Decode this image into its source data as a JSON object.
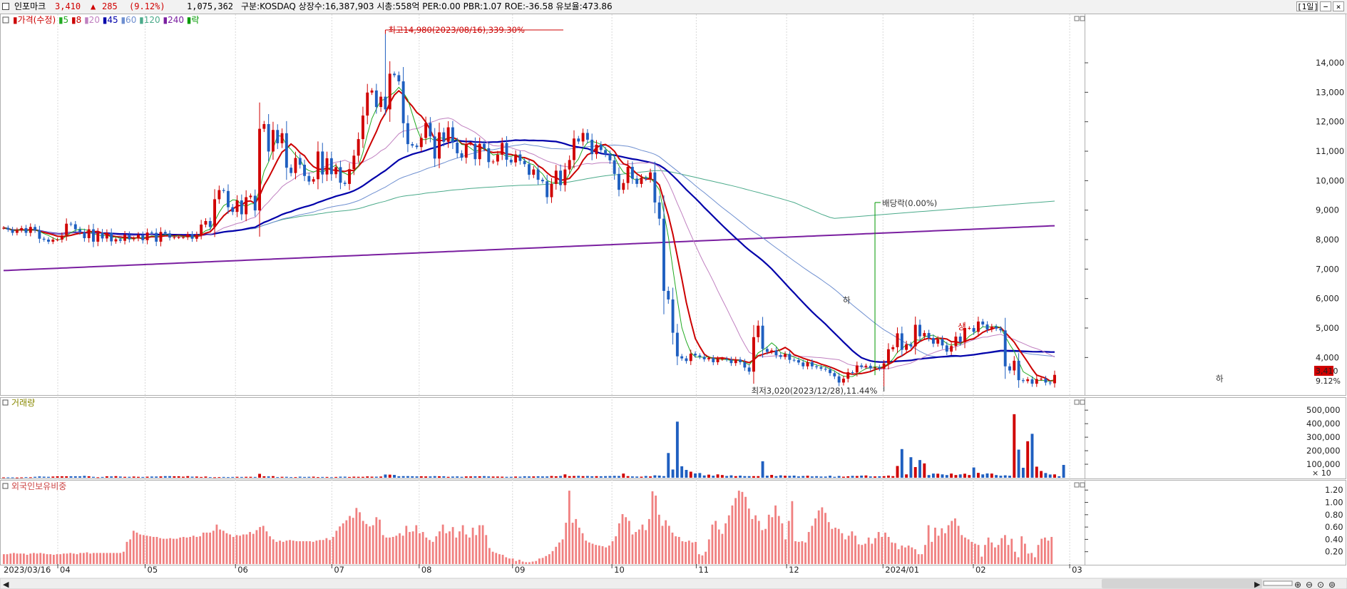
{
  "header": {
    "stock_name": "인포마크",
    "price": "3,410",
    "arrow": "▲",
    "change": "285",
    "change_pct": "(9.12%)",
    "volume": "1,075,362",
    "info": "구분:KOSDAQ 상장수:16,387,903 시총:558억 PER:0.00 PBR:1.07 ROE:-36.58 유보율:473.86",
    "period_button": "[1일]",
    "up_color": "#d00000",
    "down_color": "#1f5fc0"
  },
  "chart_data": {
    "type": "candlestick",
    "price_panel": {
      "legend": [
        {
          "label": "가격(수정)",
          "color": "#cc0000"
        },
        {
          "label": "5",
          "color": "#22aa22"
        },
        {
          "label": "8",
          "color": "#cc0000"
        },
        {
          "label": "20",
          "color": "#c080c0"
        },
        {
          "label": "45",
          "color": "#0000aa"
        },
        {
          "label": "60",
          "color": "#6e8fd0"
        },
        {
          "label": "120",
          "color": "#4aaa8a"
        },
        {
          "label": "240",
          "color": "#7a1fa0"
        },
        {
          "label": "락",
          "color": "#009900"
        }
      ],
      "y_ticks": [
        14000,
        13000,
        12000,
        11000,
        10000,
        9000,
        8000,
        7000,
        6000,
        5000,
        4000
      ],
      "y_tick_labels": [
        "14,000",
        "13,000",
        "12,000",
        "11,000",
        "10,000",
        "9,000",
        "8,000",
        "7,000",
        "6,000",
        "5,000",
        "4,000"
      ],
      "ylim": [
        2750,
        15550
      ],
      "current_price_label": "3,410",
      "current_pct_label": "9.12%",
      "high_annotation": "최고14,980(2023/08/16),339.30%",
      "low_annotation": "최저3,020(2023/12/28),11.44%",
      "dividend_annotation": "배당락(0.00%)",
      "markers": [
        "하",
        "상",
        "하"
      ],
      "closes": [
        8400,
        8340,
        8230,
        8320,
        8390,
        8230,
        8430,
        8320,
        8030,
        8000,
        7930,
        8000,
        8000,
        8140,
        8540,
        8520,
        8350,
        8250,
        8050,
        8350,
        7930,
        8240,
        8040,
        8230,
        7940,
        8010,
        7960,
        8170,
        8010,
        8040,
        8160,
        7980,
        8240,
        8230,
        7930,
        8260,
        8210,
        8070,
        8080,
        8080,
        8080,
        8180,
        8030,
        8170,
        8510,
        8630,
        8430,
        9370,
        9680,
        9650,
        9100,
        8940,
        9330,
        8860,
        9440,
        9490,
        8990,
        11760,
        11920,
        10990,
        11720,
        11270,
        11610,
        10440,
        10260,
        10770,
        10540,
        10160,
        9970,
        10050,
        10990,
        10210,
        10760,
        10220,
        10460,
        9930,
        9890,
        10390,
        10850,
        11410,
        12210,
        12990,
        13060,
        12500,
        12850,
        12420,
        13630,
        13580,
        13370,
        11950,
        11240,
        11190,
        11140,
        11450,
        11960,
        11500,
        10750,
        11640,
        11320,
        11810,
        11290,
        10930,
        10780,
        11250,
        11250,
        10730,
        11250,
        11100,
        10630,
        10650,
        10880,
        11280,
        10710,
        10620,
        10890,
        10670,
        10560,
        10200,
        10380,
        10030,
        9980,
        9440,
        9890,
        10340,
        9850,
        10380,
        10700,
        11430,
        11330,
        11620,
        11390,
        10900,
        11220,
        11040,
        10900,
        10690,
        10230,
        9690,
        9920,
        10470,
        10070,
        9890,
        10100,
        10060,
        10280,
        9260,
        8710,
        6260,
        5970,
        4840,
        4040,
        3970,
        3880,
        4130,
        4070,
        4020,
        3940,
        3980,
        3840,
        3950,
        3960,
        3930,
        3810,
        3930,
        3840,
        3660,
        3520,
        4690,
        5080,
        4290,
        4190,
        4240,
        4080,
        4020,
        4120,
        3920,
        3910,
        3830,
        3700,
        3840,
        3700,
        3670,
        3620,
        3590,
        3470,
        3360,
        3150,
        3280,
        3500,
        3490,
        3730,
        3680,
        3720,
        3630,
        3680,
        3620,
        3800,
        4280,
        4350,
        4820,
        4260,
        4450,
        4380,
        5110,
        4720,
        4830,
        4660,
        4470,
        4620,
        4410,
        4200,
        4390,
        4710,
        4520,
        5000,
        5000,
        4870,
        5220,
        5120,
        4950,
        5050,
        4980,
        4920,
        3700,
        3560,
        3890,
        3230,
        3200,
        3260,
        3110,
        3270,
        3280,
        3150,
        3125,
        3410
      ]
    },
    "volume_panel": {
      "title": "거래량",
      "y_ticks": [
        500000,
        400000,
        300000,
        200000,
        100000
      ],
      "y_tick_labels": [
        "500,000",
        "400,000",
        "300,000",
        "200,000",
        "100,000"
      ],
      "unit_label": "× 10",
      "ylim": [
        0,
        580000
      ],
      "values": [
        3000,
        3000,
        3000,
        2000,
        3000,
        5000,
        4000,
        7000,
        10000,
        8000,
        7000,
        9000,
        11000,
        11000,
        11000,
        11000,
        11000,
        11000,
        14000,
        11000,
        7000,
        4000,
        6000,
        11000,
        10000,
        12000,
        9000,
        7000,
        7000,
        9000,
        7000,
        6000,
        8000,
        9000,
        9000,
        10000,
        12000,
        12000,
        11000,
        11000,
        8000,
        12000,
        8000,
        9000,
        6000,
        9000,
        5000,
        4000,
        5000,
        6000,
        5000,
        6000,
        7000,
        6000,
        7000,
        7000,
        6000,
        29000,
        11000,
        10000,
        12000,
        5000,
        7000,
        7000,
        5000,
        5000,
        8000,
        6000,
        7000,
        8000,
        5000,
        6000,
        6000,
        4000,
        6000,
        8000,
        8000,
        6000,
        8000,
        7000,
        7000,
        10000,
        8000,
        8000,
        9000,
        24000,
        23000,
        21000,
        11000,
        12000,
        12000,
        11000,
        10000,
        11000,
        10000,
        10000,
        12000,
        11000,
        11000,
        7000,
        9000,
        10000,
        7000,
        10000,
        10000,
        11000,
        11000,
        12000,
        10000,
        9000,
        9000,
        8000,
        7000,
        7000,
        9000,
        8000,
        11000,
        10000,
        10000,
        11000,
        10000,
        10000,
        13000,
        11000,
        13000,
        25000,
        12000,
        13000,
        14000,
        12000,
        13000,
        11000,
        12000,
        11000,
        12000,
        13000,
        14000,
        13000,
        31000,
        12000,
        10000,
        9000,
        8000,
        13000,
        10000,
        18000,
        16000,
        12000,
        183000,
        61000,
        415000,
        85000,
        58000,
        45000,
        32000,
        35000,
        17000,
        23000,
        15000,
        25000,
        20000,
        13000,
        18000,
        12000,
        16000,
        12000,
        12000,
        12000,
        12000,
        122000,
        15000,
        21000,
        12000,
        18000,
        15000,
        14000,
        16000,
        10000,
        13000,
        15000,
        10000,
        12000,
        9000,
        9000,
        15000,
        7000,
        13000,
        8000,
        11000,
        14000,
        13000,
        16000,
        17000,
        10000,
        10000,
        11000,
        12000,
        16000,
        12000,
        87000,
        212000,
        25000,
        152000,
        79000,
        131000,
        106000,
        20000,
        31000,
        30000,
        25000,
        20000,
        31000,
        20000,
        25000,
        30000,
        20000,
        76000,
        36000,
        25000,
        32000,
        31000,
        20000,
        15000,
        18000,
        15000,
        470000,
        208000,
        74000,
        270000,
        325000,
        82000,
        50000,
        35000,
        24000,
        25000,
        11000,
        95000
      ]
    },
    "foreign_panel": {
      "title": "외국인보유비중",
      "y_ticks": [
        1.2,
        1.0,
        0.8,
        0.6,
        0.4,
        0.2
      ],
      "y_tick_labels": [
        "1.20",
        "1.00",
        "0.80",
        "0.60",
        "0.40",
        "0.20"
      ],
      "ylim": [
        0,
        1.33
      ],
      "values": [
        0.16,
        0.16,
        0.17,
        0.18,
        0.17,
        0.17,
        0.17,
        0.15,
        0.17,
        0.18,
        0.17,
        0.18,
        0.17,
        0.16,
        0.16,
        0.15,
        0.16,
        0.16,
        0.17,
        0.17,
        0.18,
        0.17,
        0.16,
        0.18,
        0.18,
        0.19,
        0.17,
        0.18,
        0.18,
        0.18,
        0.18,
        0.18,
        0.18,
        0.18,
        0.18,
        0.18,
        0.2,
        0.36,
        0.4,
        0.54,
        0.51,
        0.48,
        0.47,
        0.46,
        0.45,
        0.44,
        0.44,
        0.42,
        0.41,
        0.41,
        0.42,
        0.41,
        0.41,
        0.43,
        0.44,
        0.43,
        0.44,
        0.46,
        0.44,
        0.45,
        0.51,
        0.51,
        0.51,
        0.54,
        0.64,
        0.56,
        0.54,
        0.5,
        0.48,
        0.44,
        0.47,
        0.46,
        0.48,
        0.48,
        0.52,
        0.49,
        0.55,
        0.6,
        0.62,
        0.53,
        0.45,
        0.4,
        0.36,
        0.38,
        0.36,
        0.38,
        0.39,
        0.38,
        0.37,
        0.37,
        0.37,
        0.37,
        0.37,
        0.36,
        0.38,
        0.39,
        0.39,
        0.42,
        0.39,
        0.44,
        0.54,
        0.61,
        0.66,
        0.71,
        0.78,
        0.75,
        0.91,
        0.84,
        0.7,
        0.65,
        0.61,
        0.63,
        0.76,
        0.72,
        0.47,
        0.43,
        0.43,
        0.44,
        0.46,
        0.5,
        0.46,
        0.62,
        0.52,
        0.53,
        0.63,
        0.5,
        0.52,
        0.43,
        0.39,
        0.36,
        0.45,
        0.53,
        0.64,
        0.5,
        0.53,
        0.6,
        0.43,
        0.53,
        0.63,
        0.48,
        0.43,
        0.59,
        0.47,
        0.63,
        0.63,
        0.47,
        0.26,
        0.2,
        0.18,
        0.16,
        0.15,
        0.11,
        0.09,
        0.09,
        0.05,
        0.07,
        0.04,
        0.03,
        0.03,
        0.04,
        0.05,
        0.09,
        0.1,
        0.13,
        0.16,
        0.21,
        0.28,
        0.35,
        0.4,
        0.67,
        1.19,
        0.67,
        0.73,
        0.59,
        0.5,
        0.38,
        0.35,
        0.33,
        0.31,
        0.3,
        0.29,
        0.27,
        0.3,
        0.37,
        0.45,
        0.66,
        0.81,
        0.76,
        0.7,
        0.48,
        0.52,
        0.56,
        0.64,
        0.55,
        0.73,
        1.18,
        1.11,
        0.8,
        0.62,
        0.71,
        0.62,
        0.51,
        0.45,
        0.44,
        0.37,
        0.36,
        0.38,
        0.35,
        0.36,
        0.16,
        0.14,
        0.2,
        0.4,
        0.64,
        0.7,
        0.56,
        0.49,
        0.66,
        0.79,
        0.95,
        1.07,
        1.19,
        1.17,
        1.09,
        0.9,
        0.73,
        0.79,
        0.7,
        0.55,
        0.57,
        0.8,
        0.76,
        0.95,
        0.78,
        0.66,
        0.4,
        0.7,
        1.02,
        0.37,
        0.36,
        0.37,
        0.35,
        0.52,
        0.62,
        0.74,
        0.87,
        0.92,
        0.83,
        0.68,
        0.57,
        0.59,
        0.57,
        0.5,
        0.4,
        0.46,
        0.53,
        0.46,
        0.32,
        0.31,
        0.33,
        0.43,
        0.33,
        0.42,
        0.52,
        0.44,
        0.51,
        0.44,
        0.35,
        0.34,
        0.24,
        0.3,
        0.27,
        0.3,
        0.27,
        0.24,
        0.16,
        0.16,
        0.31,
        0.63,
        0.36,
        0.59,
        0.46,
        0.58,
        0.5,
        0.63,
        0.7,
        0.74,
        0.62,
        0.47,
        0.43,
        0.4,
        0.36,
        0.33,
        0.31,
        0.12,
        0.31,
        0.43,
        0.35,
        0.27,
        0.31,
        0.42,
        0.47,
        0.31,
        0.41,
        0.2,
        0.11,
        0.45,
        0.33,
        0.17,
        0.18,
        0.11,
        0.31,
        0.41,
        0.43,
        0.38,
        0.44
      ]
    },
    "x_tick_labels": [
      "2023/03/16",
      "04",
      "05",
      "06",
      "07",
      "08",
      "09",
      "10",
      "11",
      "12",
      "2024/01",
      "02",
      "03"
    ],
    "x_tick_dates": [
      "2023-03-16",
      "2023-04-03",
      "2023-05-02",
      "2023-06-01",
      "2023-07-03",
      "2023-08-01",
      "2023-09-01",
      "2023-10-04",
      "2023-11-01",
      "2023-12-01",
      "2024-01-02",
      "2024-02-01",
      "2024-03-04"
    ]
  }
}
